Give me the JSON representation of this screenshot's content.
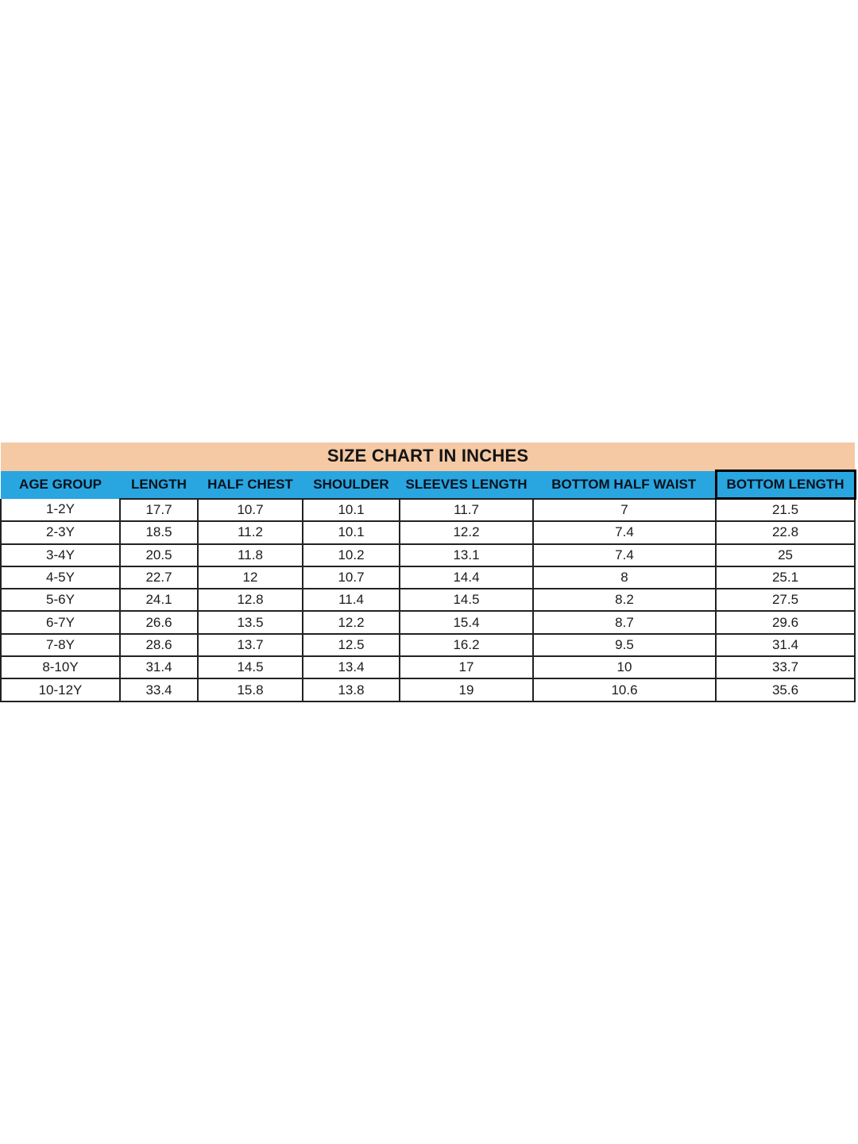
{
  "colors": {
    "title_bar_bg": "#f4c9a3",
    "header_bg": "#29a5df",
    "border": "#222222"
  },
  "chart_data": {
    "type": "table",
    "title": "SIZE CHART IN INCHES",
    "units": "inches",
    "columns": [
      "AGE GROUP",
      "LENGTH",
      "HALF CHEST",
      "SHOULDER",
      "SLEEVES LENGTH",
      "BOTTOM HALF WAIST",
      "BOTTOM LENGTH"
    ],
    "rows": [
      [
        "1-2Y",
        "17.7",
        "10.7",
        "10.1",
        "11.7",
        "7",
        "21.5"
      ],
      [
        "2-3Y",
        "18.5",
        "11.2",
        "10.1",
        "12.2",
        "7.4",
        "22.8"
      ],
      [
        "3-4Y",
        "20.5",
        "11.8",
        "10.2",
        "13.1",
        "7.4",
        "25"
      ],
      [
        "4-5Y",
        "22.7",
        "12",
        "10.7",
        "14.4",
        "8",
        "25.1"
      ],
      [
        "5-6Y",
        "24.1",
        "12.8",
        "11.4",
        "14.5",
        "8.2",
        "27.5"
      ],
      [
        "6-7Y",
        "26.6",
        "13.5",
        "12.2",
        "15.4",
        "8.7",
        "29.6"
      ],
      [
        "7-8Y",
        "28.6",
        "13.7",
        "12.5",
        "16.2",
        "9.5",
        "31.4"
      ],
      [
        "8-10Y",
        "31.4",
        "14.5",
        "13.4",
        "17",
        "10",
        "33.7"
      ],
      [
        "10-12Y",
        "33.4",
        "15.8",
        "13.8",
        "19",
        "10.6",
        "35.6"
      ]
    ]
  }
}
